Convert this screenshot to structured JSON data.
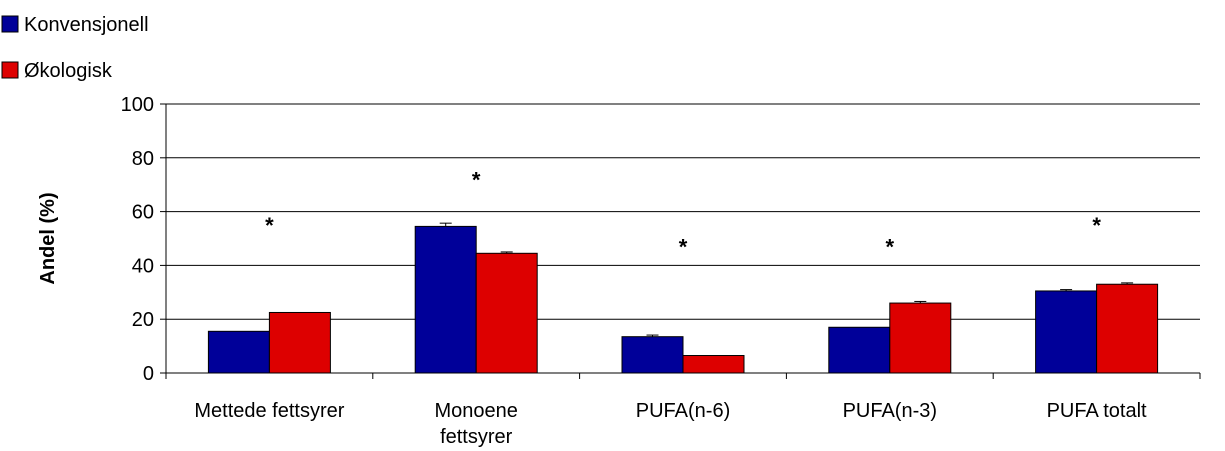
{
  "chart_data": {
    "type": "bar",
    "categories": [
      [
        "Mettede fettsyrer"
      ],
      [
        "Monoene",
        "fettsyrer"
      ],
      [
        "PUFA(n-6)"
      ],
      [
        "PUFA(n-3)"
      ],
      [
        "PUFA totalt"
      ]
    ],
    "series": [
      {
        "name": "Konvensjonell",
        "color": "#000099",
        "values": [
          15.5,
          54.5,
          13.5,
          17,
          30.5
        ],
        "errors": [
          0,
          1.2,
          0.6,
          0,
          0.5
        ]
      },
      {
        "name": "Økologisk",
        "color": "#dd0000",
        "values": [
          22.5,
          44.5,
          6.5,
          26,
          33
        ],
        "errors": [
          0,
          0.5,
          0,
          0.6,
          0.5
        ]
      }
    ],
    "ylabel": "Andel (%)",
    "xlabel": "",
    "ylim": [
      0,
      100
    ],
    "yticks": [
      0,
      20,
      40,
      60,
      80,
      100
    ],
    "ytick_labels": [
      "0",
      "20",
      "40",
      "60",
      "80",
      "100"
    ],
    "significance": [
      "*",
      "*",
      "*",
      "*",
      "*"
    ],
    "significance_y": [
      55,
      72,
      47,
      47,
      55
    ],
    "grid": true,
    "legend_position": "top-left"
  }
}
